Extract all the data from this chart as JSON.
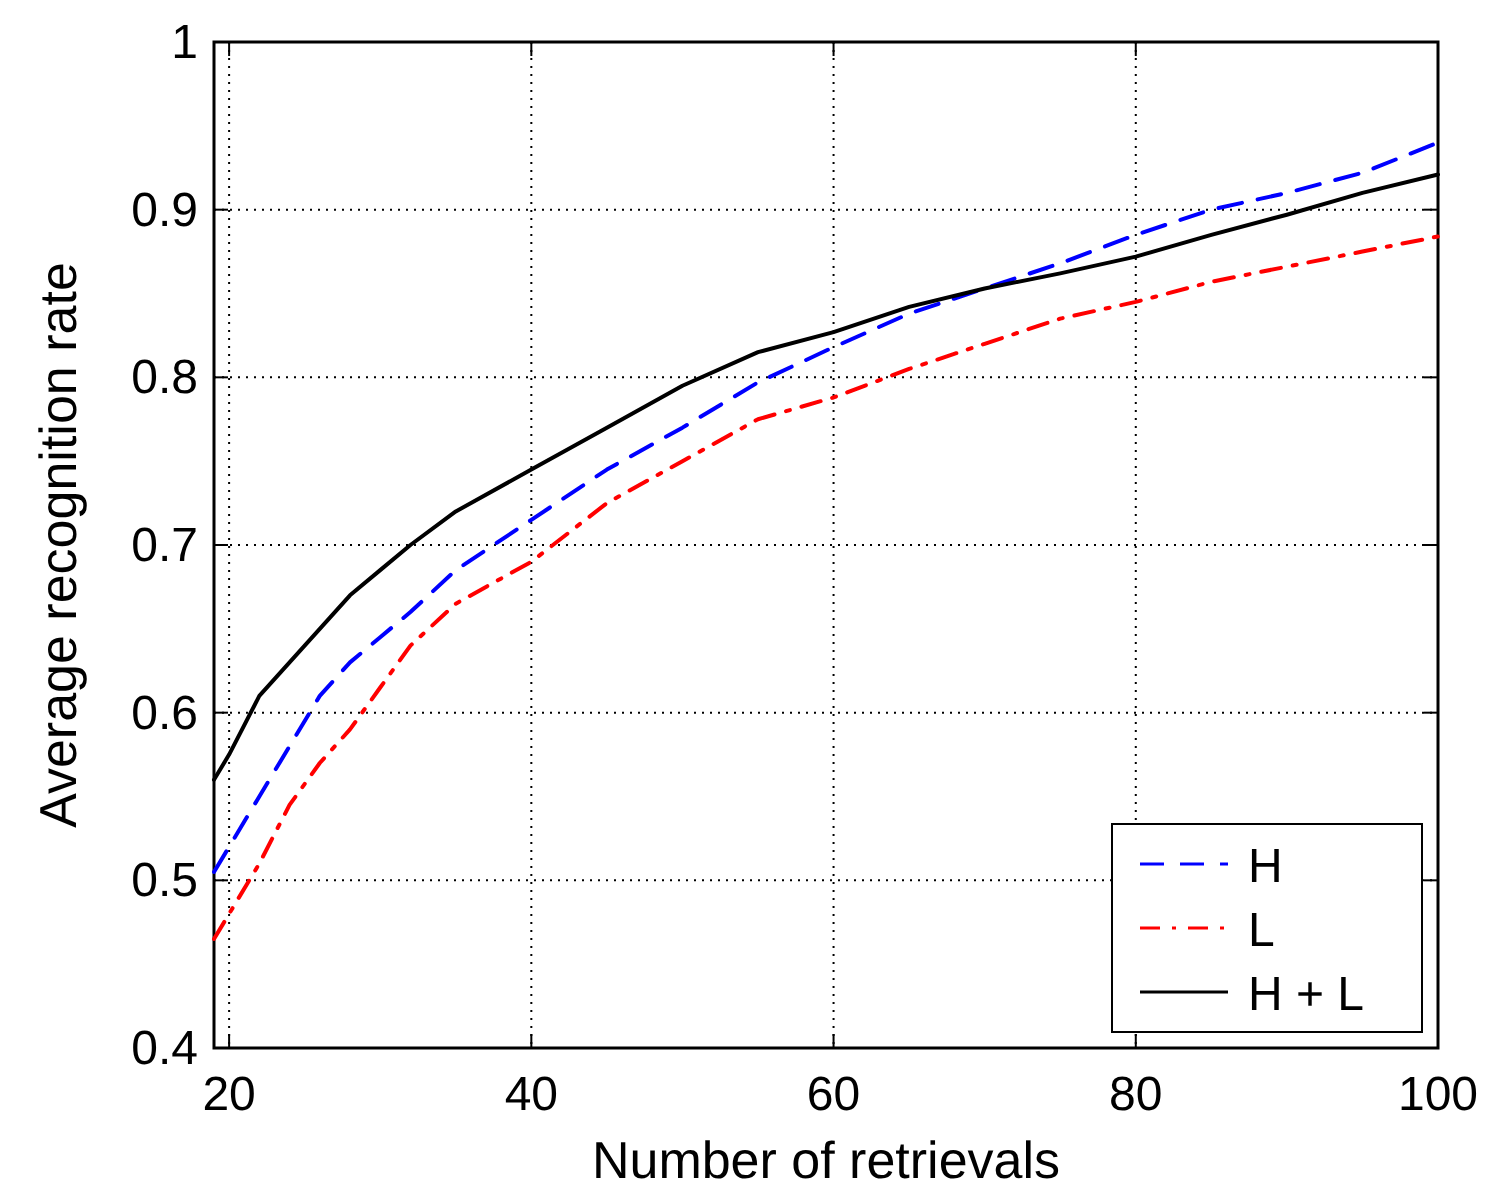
{
  "chart_data": {
    "type": "line",
    "xlabel": "Number of retrievals",
    "ylabel": "Average recognition rate",
    "x": [
      19,
      20,
      22,
      24,
      26,
      28,
      30,
      32,
      35,
      40,
      45,
      50,
      55,
      60,
      65,
      70,
      75,
      80,
      85,
      90,
      95,
      100
    ],
    "series": [
      {
        "name": "H",
        "color": "#0000ff",
        "line_style": "dashed",
        "values": [
          0.505,
          0.52,
          0.55,
          0.58,
          0.61,
          0.63,
          0.645,
          0.66,
          0.685,
          0.715,
          0.745,
          0.77,
          0.797,
          0.818,
          0.838,
          0.853,
          0.868,
          0.885,
          0.9,
          0.91,
          0.922,
          0.94
        ]
      },
      {
        "name": "L",
        "color": "#ff0000",
        "line_style": "dashdot",
        "values": [
          0.465,
          0.48,
          0.51,
          0.545,
          0.57,
          0.59,
          0.615,
          0.64,
          0.665,
          0.69,
          0.725,
          0.75,
          0.775,
          0.788,
          0.805,
          0.82,
          0.835,
          0.845,
          0.857,
          0.866,
          0.875,
          0.884
        ]
      },
      {
        "name": "H + L",
        "color": "#000000",
        "line_style": "solid",
        "values": [
          0.56,
          0.575,
          0.61,
          0.63,
          0.65,
          0.67,
          0.685,
          0.7,
          0.72,
          0.745,
          0.77,
          0.795,
          0.815,
          0.827,
          0.842,
          0.853,
          0.862,
          0.872,
          0.885,
          0.897,
          0.91,
          0.921
        ]
      }
    ],
    "xlim": [
      19,
      100
    ],
    "xticks": [
      20,
      40,
      60,
      80,
      100
    ],
    "ylim": [
      0.4,
      1
    ],
    "yticks": [
      0.4,
      0.5,
      0.6,
      0.7,
      0.8,
      0.9,
      1
    ],
    "grid": true,
    "legend": "bottom right"
  }
}
